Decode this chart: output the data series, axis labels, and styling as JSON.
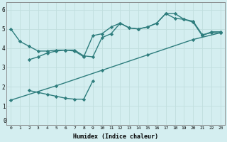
{
  "line1_x": [
    0,
    1,
    2,
    3,
    4,
    5,
    6,
    7,
    8,
    9,
    10,
    11,
    12,
    13,
    14,
    15,
    16,
    17,
    18,
    19,
    20,
    21,
    22,
    23
  ],
  "line1_y": [
    5.0,
    4.35,
    4.1,
    3.85,
    3.85,
    3.9,
    3.9,
    3.85,
    3.55,
    4.65,
    4.75,
    5.1,
    5.3,
    5.05,
    5.0,
    5.1,
    5.3,
    5.8,
    5.8,
    5.5,
    5.4,
    4.7,
    4.8,
    4.8
  ],
  "line2_x": [
    2,
    3,
    4,
    5,
    6,
    7,
    8,
    9,
    10,
    11,
    12,
    13,
    14,
    15,
    16,
    17,
    18,
    19,
    20,
    21,
    22,
    23
  ],
  "line2_y": [
    3.4,
    3.55,
    3.75,
    3.85,
    3.9,
    3.9,
    3.6,
    3.55,
    4.55,
    4.75,
    5.3,
    5.05,
    5.0,
    5.1,
    5.3,
    5.8,
    5.55,
    5.5,
    5.35,
    4.65,
    4.85,
    4.85
  ],
  "line3_x": [
    0,
    5,
    10,
    15,
    20,
    23
  ],
  "line3_y": [
    1.3,
    2.05,
    2.85,
    3.65,
    4.45,
    4.8
  ],
  "line4_x": [
    2,
    3,
    4,
    5,
    6,
    7,
    8,
    9
  ],
  "line4_y": [
    1.8,
    1.7,
    1.6,
    1.5,
    1.4,
    1.35,
    1.35,
    2.3
  ],
  "color": "#2e7d7d",
  "bg_color": "#d4eef0",
  "grid_color": "#c0dede",
  "xlabel": "Humidex (Indice chaleur)",
  "xlim": [
    -0.5,
    23.5
  ],
  "ylim": [
    0,
    6.4
  ],
  "xticks": [
    0,
    1,
    2,
    3,
    4,
    5,
    6,
    7,
    8,
    9,
    10,
    11,
    12,
    13,
    14,
    15,
    16,
    17,
    18,
    19,
    20,
    21,
    22,
    23
  ],
  "yticks": [
    1,
    2,
    3,
    4,
    5,
    6
  ],
  "marker": "D",
  "markersize": 2.2,
  "linewidth": 1.0
}
